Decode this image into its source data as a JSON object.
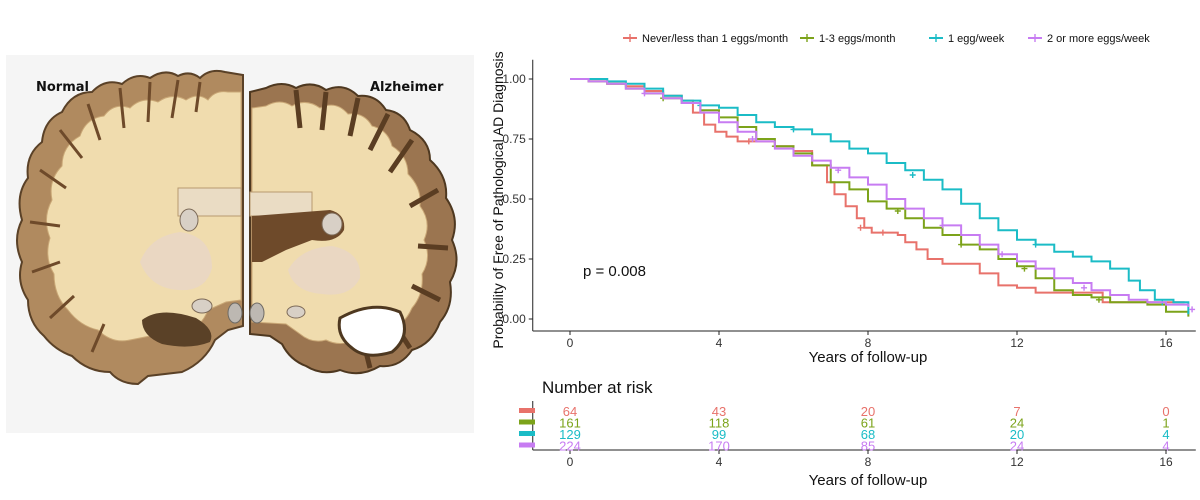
{
  "illustration": {
    "left_label": "Normal",
    "right_label": "Alzheimer",
    "colors": {
      "background": "#f5f5f5",
      "cortex": "#b08a5f",
      "cortex_outline": "#5a4127",
      "white_matter": "#f0dcae",
      "ventricle": "#6e4a2a",
      "deep_gray": "#ead7c2"
    }
  },
  "chart_data": {
    "type": "line",
    "subtype": "kaplan-meier step",
    "ylabel": "Probability of Free of Pathological AD Diagnosis",
    "xlabel": "Years of follow-up",
    "xlim": [
      -1,
      16.8
    ],
    "ylim": [
      -0.05,
      1.08
    ],
    "xticks": [
      "0",
      "4",
      "8",
      "12",
      "16"
    ],
    "xtick_values": [
      0,
      4,
      8,
      12,
      16
    ],
    "yticks": [
      "0.00",
      "0.25",
      "0.50",
      "0.75",
      "1.00"
    ],
    "ytick_values": [
      0,
      0.25,
      0.5,
      0.75,
      1.0
    ],
    "annotation": "p = 0.008",
    "legend_position": "top",
    "series": [
      {
        "name": "Never/less than 1 eggs/month",
        "color": "#e8726b",
        "points": [
          [
            0,
            1.0
          ],
          [
            0.5,
            0.99
          ],
          [
            1,
            0.98
          ],
          [
            1.5,
            0.97
          ],
          [
            2,
            0.95
          ],
          [
            2.5,
            0.93
          ],
          [
            3,
            0.91
          ],
          [
            3.3,
            0.86
          ],
          [
            3.6,
            0.81
          ],
          [
            3.9,
            0.78
          ],
          [
            4.2,
            0.76
          ],
          [
            4.5,
            0.74
          ],
          [
            5,
            0.74
          ],
          [
            5.5,
            0.72
          ],
          [
            6,
            0.7
          ],
          [
            6.5,
            0.64
          ],
          [
            6.9,
            0.57
          ],
          [
            7.1,
            0.52
          ],
          [
            7.4,
            0.47
          ],
          [
            7.7,
            0.42
          ],
          [
            7.9,
            0.38
          ],
          [
            8.1,
            0.36
          ],
          [
            8.5,
            0.36
          ],
          [
            8.8,
            0.35
          ],
          [
            9.0,
            0.32
          ],
          [
            9.3,
            0.29
          ],
          [
            9.6,
            0.25
          ],
          [
            10.0,
            0.23
          ],
          [
            10.5,
            0.23
          ],
          [
            11.0,
            0.19
          ],
          [
            11.5,
            0.14
          ],
          [
            12.0,
            0.13
          ],
          [
            12.5,
            0.11
          ],
          [
            13.0,
            0.11
          ],
          [
            14.0,
            0.11
          ],
          [
            14.3,
            0.07
          ],
          [
            15.0,
            0.07
          ],
          [
            16.5,
            0.07
          ]
        ],
        "censors": [
          [
            4.8,
            0.74
          ],
          [
            7.8,
            0.38
          ],
          [
            8.4,
            0.36
          ]
        ]
      },
      {
        "name": "1-3 eggs/month",
        "color": "#7ca31a",
        "points": [
          [
            0,
            1.0
          ],
          [
            0.5,
            0.99
          ],
          [
            1,
            0.98
          ],
          [
            1.5,
            0.96
          ],
          [
            2,
            0.94
          ],
          [
            2.5,
            0.92
          ],
          [
            3,
            0.9
          ],
          [
            3.5,
            0.87
          ],
          [
            4,
            0.84
          ],
          [
            4.5,
            0.8
          ],
          [
            5,
            0.75
          ],
          [
            5.5,
            0.72
          ],
          [
            6,
            0.69
          ],
          [
            6.5,
            0.64
          ],
          [
            7,
            0.57
          ],
          [
            7.5,
            0.54
          ],
          [
            8,
            0.49
          ],
          [
            8.5,
            0.46
          ],
          [
            9,
            0.42
          ],
          [
            9.5,
            0.38
          ],
          [
            10,
            0.35
          ],
          [
            10.5,
            0.31
          ],
          [
            11,
            0.29
          ],
          [
            11.5,
            0.25
          ],
          [
            12,
            0.22
          ],
          [
            12.5,
            0.17
          ],
          [
            13,
            0.12
          ],
          [
            13.5,
            0.1
          ],
          [
            14,
            0.09
          ],
          [
            14.5,
            0.07
          ],
          [
            15,
            0.07
          ],
          [
            15.5,
            0.06
          ],
          [
            16,
            0.03
          ],
          [
            16.6,
            0.01
          ]
        ],
        "censors": [
          [
            2.5,
            0.92
          ],
          [
            5.5,
            0.72
          ],
          [
            8.8,
            0.45
          ],
          [
            10.5,
            0.31
          ],
          [
            12.2,
            0.21
          ],
          [
            14.2,
            0.08
          ]
        ]
      },
      {
        "name": "1 egg/week",
        "color": "#1bbcc6",
        "points": [
          [
            0,
            1.0
          ],
          [
            0.5,
            1.0
          ],
          [
            1,
            0.99
          ],
          [
            1.5,
            0.98
          ],
          [
            2,
            0.96
          ],
          [
            2.5,
            0.93
          ],
          [
            3,
            0.91
          ],
          [
            3.5,
            0.89
          ],
          [
            4,
            0.88
          ],
          [
            4.5,
            0.85
          ],
          [
            5,
            0.82
          ],
          [
            5.5,
            0.8
          ],
          [
            6,
            0.79
          ],
          [
            6.5,
            0.77
          ],
          [
            7,
            0.74
          ],
          [
            7.5,
            0.71
          ],
          [
            8,
            0.69
          ],
          [
            8.5,
            0.65
          ],
          [
            9,
            0.62
          ],
          [
            9.5,
            0.58
          ],
          [
            10,
            0.54
          ],
          [
            10.5,
            0.48
          ],
          [
            11,
            0.42
          ],
          [
            11.5,
            0.37
          ],
          [
            12,
            0.33
          ],
          [
            12.5,
            0.31
          ],
          [
            13,
            0.28
          ],
          [
            13.5,
            0.26
          ],
          [
            14,
            0.24
          ],
          [
            14.5,
            0.21
          ],
          [
            15,
            0.16
          ],
          [
            15.3,
            0.12
          ],
          [
            15.7,
            0.08
          ],
          [
            16.2,
            0.07
          ],
          [
            16.6,
            0.02
          ]
        ],
        "censors": [
          [
            1.0,
            0.99
          ],
          [
            3.5,
            0.89
          ],
          [
            6.0,
            0.79
          ],
          [
            9.2,
            0.6
          ],
          [
            12.5,
            0.31
          ],
          [
            15.9,
            0.07
          ]
        ]
      },
      {
        "name": "2 or more eggs/week",
        "color": "#c77cf2",
        "points": [
          [
            0,
            1.0
          ],
          [
            0.5,
            0.99
          ],
          [
            1,
            0.98
          ],
          [
            1.5,
            0.96
          ],
          [
            2,
            0.94
          ],
          [
            2.5,
            0.92
          ],
          [
            3,
            0.9
          ],
          [
            3.5,
            0.86
          ],
          [
            4,
            0.82
          ],
          [
            4.5,
            0.78
          ],
          [
            5,
            0.74
          ],
          [
            5.5,
            0.71
          ],
          [
            6,
            0.68
          ],
          [
            6.5,
            0.66
          ],
          [
            7,
            0.63
          ],
          [
            7.5,
            0.59
          ],
          [
            8,
            0.56
          ],
          [
            8.5,
            0.5
          ],
          [
            9,
            0.46
          ],
          [
            9.5,
            0.42
          ],
          [
            10,
            0.39
          ],
          [
            10.5,
            0.35
          ],
          [
            11,
            0.31
          ],
          [
            11.5,
            0.27
          ],
          [
            12,
            0.24
          ],
          [
            12.5,
            0.21
          ],
          [
            13,
            0.17
          ],
          [
            13.5,
            0.15
          ],
          [
            14,
            0.12
          ],
          [
            14.5,
            0.1
          ],
          [
            15,
            0.08
          ],
          [
            15.5,
            0.07
          ],
          [
            16,
            0.06
          ],
          [
            16.6,
            0.05
          ]
        ],
        "censors": [
          [
            2.0,
            0.94
          ],
          [
            4.9,
            0.75
          ],
          [
            7.2,
            0.62
          ],
          [
            10.0,
            0.39
          ],
          [
            11.6,
            0.27
          ],
          [
            13.8,
            0.13
          ],
          [
            16.7,
            0.04
          ]
        ]
      }
    ],
    "risk_table": {
      "title": "Number at risk",
      "xlabel": "Years of follow-up",
      "times": [
        0,
        4,
        8,
        12,
        16
      ],
      "rows": [
        {
          "series": "Never/less than 1 eggs/month",
          "values": [
            "64",
            "43",
            "20",
            "7",
            "0"
          ]
        },
        {
          "series": "1-3 eggs/month",
          "values": [
            "161",
            "118",
            "61",
            "24",
            "1"
          ]
        },
        {
          "series": "1 egg/week",
          "values": [
            "129",
            "99",
            "68",
            "20",
            "4"
          ]
        },
        {
          "series": "2 or more eggs/week",
          "values": [
            "224",
            "170",
            "85",
            "24",
            "4"
          ]
        }
      ]
    }
  }
}
